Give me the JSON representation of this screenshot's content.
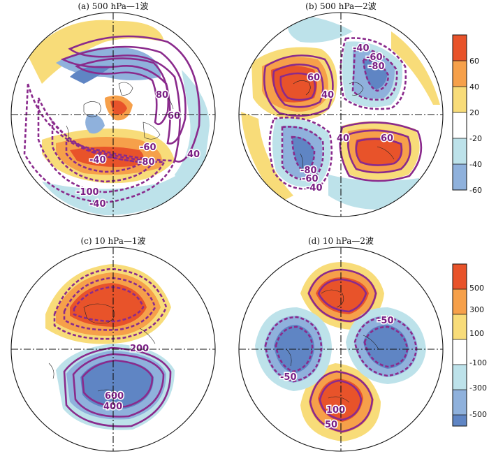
{
  "panels": [
    {
      "id": "a",
      "title": "(a) 500 hPa—1波",
      "contour_labels": [
        "80",
        "60",
        "40",
        "-40",
        "-60",
        "-80",
        "-100",
        "-40"
      ]
    },
    {
      "id": "b",
      "title": "(b) 500 hPa—2波",
      "contour_labels": [
        "40",
        "60",
        "-40",
        "-60",
        "-80",
        "40",
        "60",
        "-80",
        "-60",
        "-40"
      ]
    },
    {
      "id": "c",
      "title": "(c) 10 hPa—1波",
      "contour_labels": [
        "200",
        "600",
        "400"
      ]
    },
    {
      "id": "d",
      "title": "(d) 10 hPa—2波",
      "contour_labels": [
        "-50",
        "-50",
        "100",
        "50"
      ]
    }
  ],
  "colorbars": [
    {
      "id": "top",
      "ticks": [
        "60",
        "40",
        "20",
        "-20",
        "-40",
        "-60"
      ]
    },
    {
      "id": "bottom",
      "ticks": [
        "500",
        "300",
        "100",
        "-100",
        "-300",
        "-500"
      ]
    }
  ],
  "colors": {
    "deep_red": "#e8532a",
    "orange": "#f6a04a",
    "yellow": "#f8dc79",
    "light_blue": "#bde2ea",
    "mid_blue": "#8fb1dc",
    "deep_blue": "#5f85c4",
    "contour": "#8a2a8c"
  }
}
